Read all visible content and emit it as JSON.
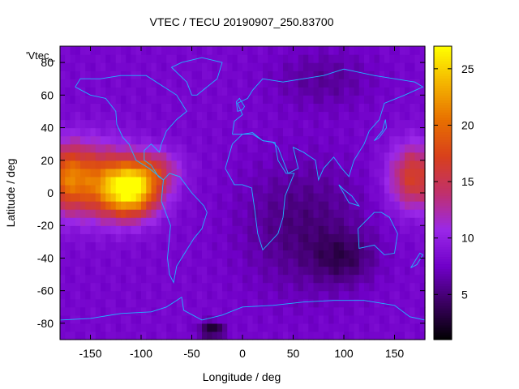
{
  "chart_data": {
    "type": "heatmap",
    "title": "VTEC / TECU 20190907_250.83700",
    "xlabel": "Longitude / deg",
    "ylabel": "Latitude / deg",
    "xlim": [
      -180,
      180
    ],
    "ylim": [
      -90,
      90
    ],
    "xticks": [
      -150,
      -100,
      -50,
      0,
      50,
      100,
      150
    ],
    "yticks": [
      -80,
      -60,
      -40,
      -20,
      0,
      20,
      40,
      60,
      80
    ],
    "colorbar": {
      "range": [
        1,
        27
      ],
      "ticks": [
        5,
        10,
        15,
        20,
        25
      ],
      "palette": [
        "#000000",
        "#3a0060",
        "#7000c8",
        "#9a28e8",
        "#c0306c",
        "#d8401c",
        "#e87000",
        "#f4b400",
        "#ffff00"
      ]
    },
    "legend": {
      "label": "'Vtec_",
      "placement": "top-left"
    },
    "grid": false,
    "field": {
      "background": 8,
      "blobs": [
        {
          "lon": -110,
          "lat": 2,
          "sx": 28,
          "sy": 16,
          "amp": 17
        },
        {
          "lon": -145,
          "lat": 8,
          "sx": 38,
          "sy": 22,
          "amp": 9
        },
        {
          "lon": -175,
          "lat": 10,
          "sx": 22,
          "sy": 20,
          "amp": 8
        },
        {
          "lon": 170,
          "lat": 10,
          "sx": 25,
          "sy": 20,
          "amp": 9
        },
        {
          "lon": -85,
          "lat": 15,
          "sx": 25,
          "sy": 12,
          "amp": 5
        },
        {
          "lon": 60,
          "lat": -20,
          "sx": 60,
          "sy": 40,
          "amp": -3
        },
        {
          "lon": 100,
          "lat": -40,
          "sx": 30,
          "sy": 15,
          "amp": -3
        },
        {
          "lon": -30,
          "lat": -84,
          "sx": 12,
          "sy": 5,
          "amp": -6
        },
        {
          "lon": 80,
          "lat": 70,
          "sx": 50,
          "sy": 18,
          "amp": -2
        }
      ]
    }
  }
}
